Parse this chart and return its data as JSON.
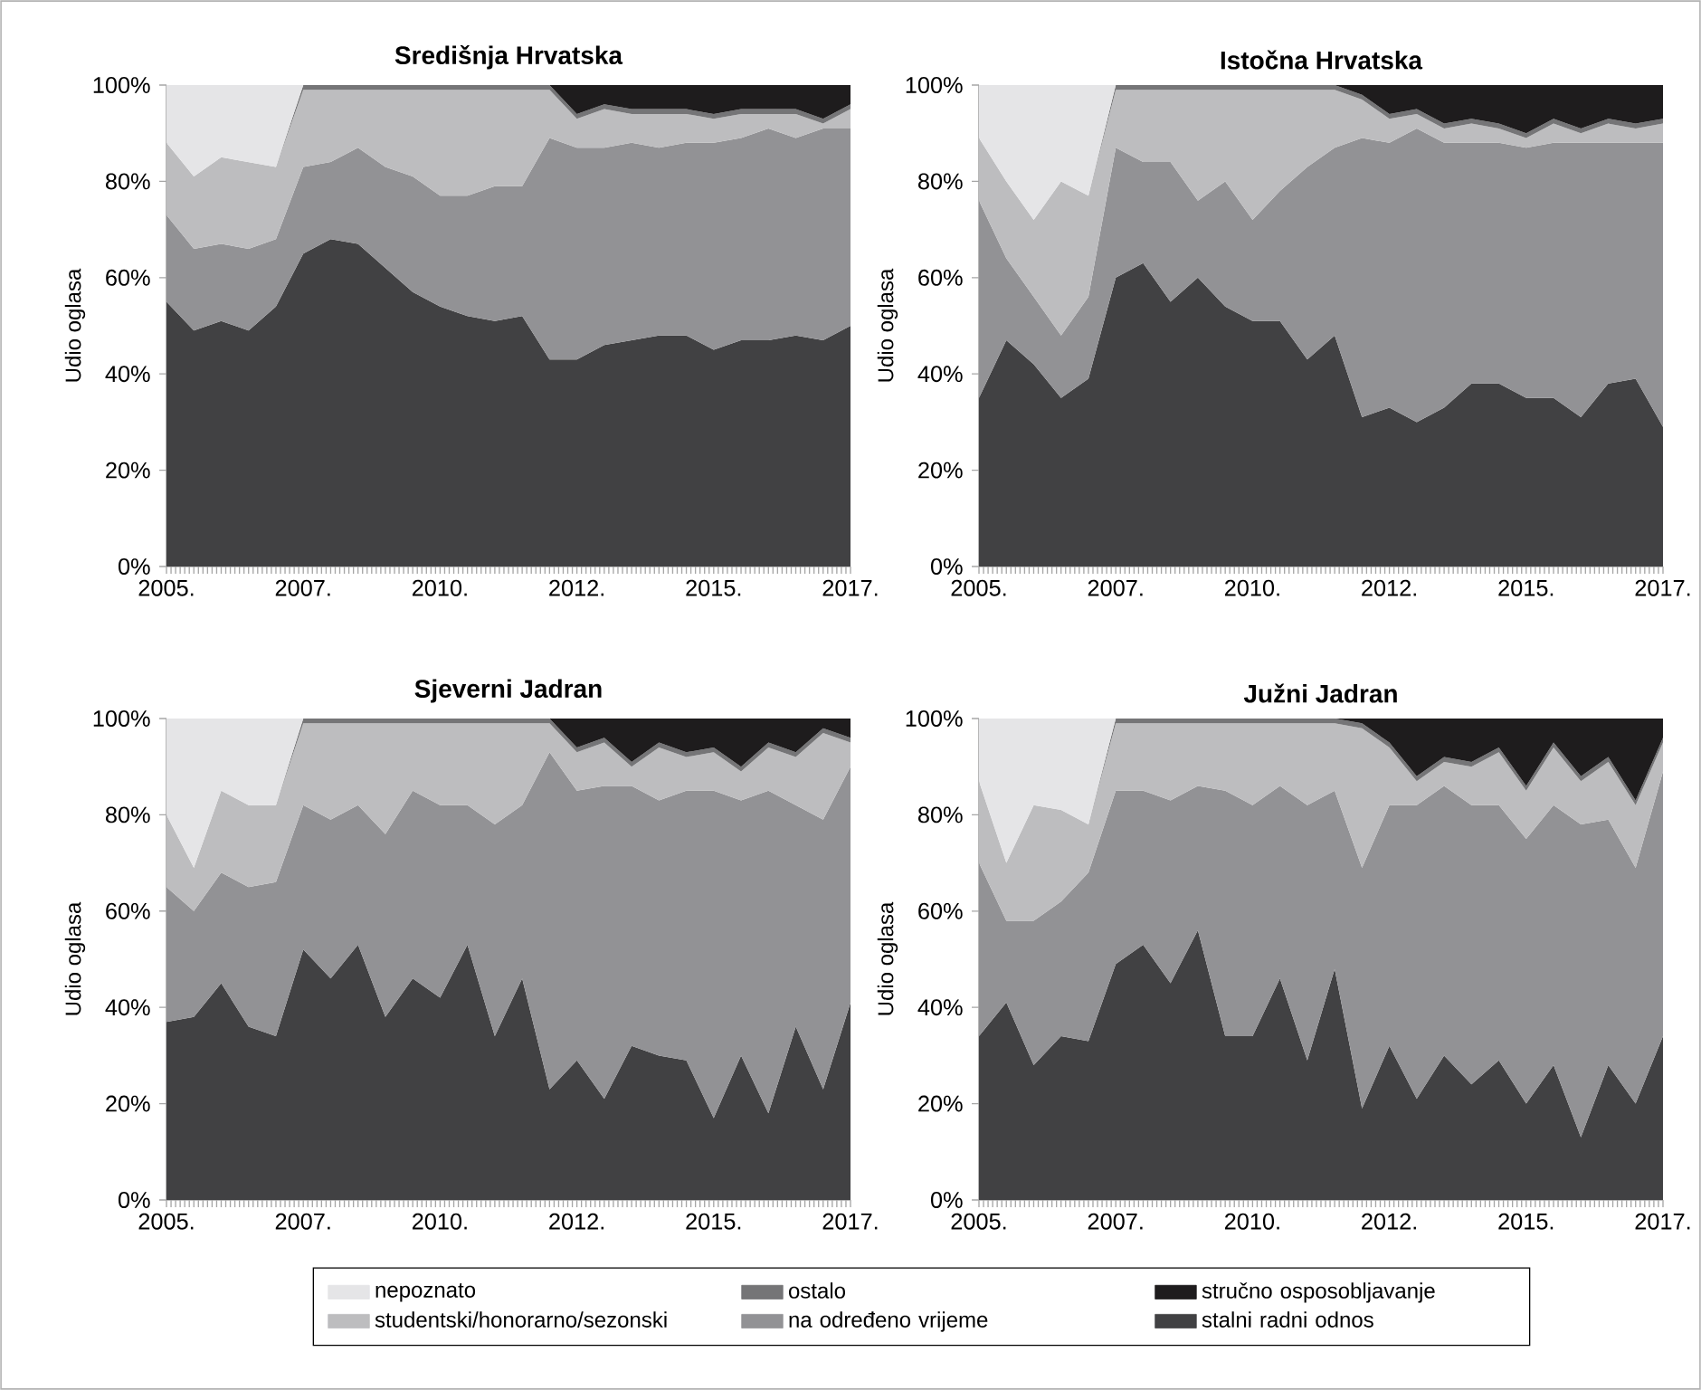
{
  "chart_data": [
    {
      "type": "area",
      "stacked": true,
      "title": "Središnja Hrvatska",
      "ylabel": "Udio oglasa",
      "x": [
        2005,
        2005.5,
        2006,
        2006.5,
        2007,
        2007.5,
        2008,
        2008.5,
        2009,
        2009.5,
        2010,
        2010.5,
        2011,
        2011.5,
        2012,
        2012.5,
        2013,
        2013.5,
        2014,
        2014.5,
        2015,
        2015.5,
        2016,
        2016.5,
        2017,
        2017.5
      ],
      "xlim": [
        2005,
        2017.5
      ],
      "xticks": [
        {
          "value": 2005,
          "label": "2005."
        },
        {
          "value": 2007.5,
          "label": "2007."
        },
        {
          "value": 2010,
          "label": "2010."
        },
        {
          "value": 2012.5,
          "label": "2012."
        },
        {
          "value": 2015,
          "label": "2015."
        },
        {
          "value": 2017.5,
          "label": "2017."
        }
      ],
      "ylim": [
        0,
        100
      ],
      "yticks": [
        {
          "value": 0,
          "label": "0%"
        },
        {
          "value": 20,
          "label": "20%"
        },
        {
          "value": 40,
          "label": "40%"
        },
        {
          "value": 60,
          "label": "60%"
        },
        {
          "value": 80,
          "label": "80%"
        },
        {
          "value": 100,
          "label": "100%"
        }
      ],
      "series": [
        {
          "color": "#414143",
          "values": [
            55,
            49,
            51,
            49,
            54,
            65,
            68,
            67,
            62,
            57,
            54,
            52,
            51,
            52,
            43,
            43,
            46,
            47,
            48,
            48,
            45,
            47,
            47,
            48,
            47,
            50
          ]
        },
        {
          "color": "#929295",
          "values": [
            18,
            17,
            16,
            17,
            14,
            18,
            16,
            20,
            21,
            24,
            23,
            25,
            28,
            27,
            46,
            44,
            41,
            41,
            39,
            40,
            43,
            42,
            44,
            41,
            44,
            41
          ]
        },
        {
          "color": "#bdbdbf",
          "values": [
            15,
            15,
            18,
            18,
            15,
            16,
            15,
            12,
            16,
            18,
            22,
            22,
            20,
            20,
            10,
            6,
            8,
            6,
            7,
            6,
            5,
            5,
            3,
            5,
            1,
            4
          ]
        },
        {
          "color": "#757577",
          "values": [
            0,
            0,
            0,
            0,
            0,
            1,
            1,
            1,
            1,
            1,
            1,
            1,
            1,
            1,
            1,
            1,
            1,
            1,
            1,
            1,
            1,
            1,
            1,
            1,
            1,
            1
          ]
        },
        {
          "color": "#1e1c1d",
          "values": [
            null,
            null,
            null,
            null,
            null,
            null,
            null,
            null,
            null,
            null,
            null,
            null,
            null,
            null,
            0,
            6,
            4,
            5,
            5,
            5,
            6,
            5,
            5,
            5,
            7,
            4
          ]
        },
        {
          "color": "#e5e5e7",
          "values": [
            12,
            19,
            15,
            16,
            17,
            0,
            null,
            null,
            null,
            null,
            null,
            null,
            null,
            null,
            null,
            null,
            null,
            null,
            null,
            null,
            null,
            null,
            null,
            null,
            null,
            null
          ]
        }
      ]
    },
    {
      "type": "area",
      "stacked": true,
      "title": "Istočna Hrvatska",
      "ylabel": "Udio oglasa",
      "x": [
        2005,
        2005.5,
        2006,
        2006.5,
        2007,
        2007.5,
        2008,
        2008.5,
        2009,
        2009.5,
        2010,
        2010.5,
        2011,
        2011.5,
        2012,
        2012.5,
        2013,
        2013.5,
        2014,
        2014.5,
        2015,
        2015.5,
        2016,
        2016.5,
        2017,
        2017.5
      ],
      "xlim": [
        2005,
        2017.5
      ],
      "xticks": [
        {
          "value": 2005,
          "label": "2005."
        },
        {
          "value": 2007.5,
          "label": "2007."
        },
        {
          "value": 2010,
          "label": "2010."
        },
        {
          "value": 2012.5,
          "label": "2012."
        },
        {
          "value": 2015,
          "label": "2015."
        },
        {
          "value": 2017.5,
          "label": "2017."
        }
      ],
      "ylim": [
        0,
        100
      ],
      "yticks": [
        {
          "value": 0,
          "label": "0%"
        },
        {
          "value": 20,
          "label": "20%"
        },
        {
          "value": 40,
          "label": "40%"
        },
        {
          "value": 60,
          "label": "60%"
        },
        {
          "value": 80,
          "label": "80%"
        },
        {
          "value": 100,
          "label": "100%"
        }
      ],
      "series": [
        {
          "color": "#414143",
          "values": [
            35,
            47,
            42,
            35,
            39,
            60,
            63,
            55,
            60,
            54,
            51,
            51,
            43,
            48,
            31,
            33,
            30,
            33,
            38,
            38,
            35,
            35,
            31,
            38,
            39,
            29
          ]
        },
        {
          "color": "#929295",
          "values": [
            41,
            17,
            14,
            13,
            17,
            27,
            21,
            29,
            16,
            26,
            21,
            27,
            40,
            39,
            58,
            55,
            61,
            55,
            50,
            50,
            52,
            53,
            57,
            50,
            49,
            59
          ]
        },
        {
          "color": "#bdbdbf",
          "values": [
            13,
            16,
            16,
            32,
            21,
            12,
            15,
            15,
            23,
            19,
            27,
            21,
            16,
            12,
            8,
            5,
            3,
            3,
            4,
            3,
            2,
            4,
            2,
            4,
            3,
            4
          ]
        },
        {
          "color": "#757577",
          "values": [
            0,
            0,
            0,
            0,
            0,
            1,
            1,
            1,
            1,
            1,
            1,
            1,
            1,
            1,
            1,
            1,
            1,
            1,
            1,
            1,
            1,
            1,
            1,
            1,
            1,
            1
          ]
        },
        {
          "color": "#1e1c1d",
          "values": [
            null,
            null,
            null,
            null,
            null,
            null,
            null,
            null,
            null,
            null,
            null,
            null,
            null,
            0,
            2,
            6,
            5,
            8,
            7,
            8,
            10,
            7,
            9,
            7,
            8,
            7
          ]
        },
        {
          "color": "#e5e5e7",
          "values": [
            11,
            20,
            28,
            20,
            23,
            0,
            null,
            null,
            null,
            null,
            null,
            null,
            null,
            null,
            null,
            null,
            null,
            null,
            null,
            null,
            null,
            null,
            null,
            null,
            null,
            null
          ]
        }
      ]
    },
    {
      "type": "area",
      "stacked": true,
      "title": "Sjeverni Jadran",
      "ylabel": "Udio oglasa",
      "x": [
        2005,
        2005.5,
        2006,
        2006.5,
        2007,
        2007.5,
        2008,
        2008.5,
        2009,
        2009.5,
        2010,
        2010.5,
        2011,
        2011.5,
        2012,
        2012.5,
        2013,
        2013.5,
        2014,
        2014.5,
        2015,
        2015.5,
        2016,
        2016.5,
        2017,
        2017.5
      ],
      "xlim": [
        2005,
        2017.5
      ],
      "xticks": [
        {
          "value": 2005,
          "label": "2005."
        },
        {
          "value": 2007.5,
          "label": "2007."
        },
        {
          "value": 2010,
          "label": "2010."
        },
        {
          "value": 2012.5,
          "label": "2012."
        },
        {
          "value": 2015,
          "label": "2015."
        },
        {
          "value": 2017.5,
          "label": "2017."
        }
      ],
      "ylim": [
        0,
        100
      ],
      "yticks": [
        {
          "value": 0,
          "label": "0%"
        },
        {
          "value": 20,
          "label": "20%"
        },
        {
          "value": 40,
          "label": "40%"
        },
        {
          "value": 60,
          "label": "60%"
        },
        {
          "value": 80,
          "label": "80%"
        },
        {
          "value": 100,
          "label": "100%"
        }
      ],
      "series": [
        {
          "color": "#414143",
          "values": [
            37,
            38,
            45,
            36,
            34,
            52,
            46,
            53,
            38,
            46,
            42,
            53,
            34,
            46,
            23,
            29,
            21,
            32,
            30,
            29,
            17,
            30,
            18,
            36,
            23,
            41
          ]
        },
        {
          "color": "#929295",
          "values": [
            28,
            22,
            23,
            29,
            32,
            30,
            33,
            29,
            38,
            39,
            40,
            29,
            44,
            36,
            70,
            56,
            65,
            54,
            53,
            56,
            68,
            53,
            67,
            46,
            56,
            49
          ]
        },
        {
          "color": "#bdbdbf",
          "values": [
            15,
            9,
            17,
            17,
            16,
            17,
            20,
            17,
            23,
            14,
            17,
            17,
            21,
            17,
            6,
            8,
            9,
            4,
            11,
            7,
            8,
            6,
            9,
            10,
            18,
            5
          ]
        },
        {
          "color": "#757577",
          "values": [
            0,
            0,
            0,
            0,
            0,
            1,
            1,
            1,
            1,
            1,
            1,
            1,
            1,
            1,
            1,
            1,
            1,
            1,
            1,
            1,
            1,
            1,
            1,
            1,
            1,
            1
          ]
        },
        {
          "color": "#1e1c1d",
          "values": [
            null,
            null,
            null,
            null,
            null,
            null,
            null,
            null,
            null,
            null,
            null,
            null,
            null,
            null,
            0,
            6,
            4,
            9,
            5,
            7,
            6,
            10,
            5,
            7,
            2,
            4
          ]
        },
        {
          "color": "#e5e5e7",
          "values": [
            20,
            31,
            15,
            18,
            18,
            0,
            null,
            null,
            null,
            null,
            null,
            null,
            null,
            null,
            null,
            null,
            null,
            null,
            null,
            null,
            null,
            null,
            null,
            null,
            null,
            null
          ]
        }
      ]
    },
    {
      "type": "area",
      "stacked": true,
      "title": "Južni Jadran",
      "ylabel": "Udio oglasa",
      "legend": "bottom",
      "x": [
        2005,
        2005.5,
        2006,
        2006.5,
        2007,
        2007.5,
        2008,
        2008.5,
        2009,
        2009.5,
        2010,
        2010.5,
        2011,
        2011.5,
        2012,
        2012.5,
        2013,
        2013.5,
        2014,
        2014.5,
        2015,
        2015.5,
        2016,
        2016.5,
        2017,
        2017.5
      ],
      "xlim": [
        2005,
        2017.5
      ],
      "xticks": [
        {
          "value": 2005,
          "label": "2005."
        },
        {
          "value": 2007.5,
          "label": "2007."
        },
        {
          "value": 2010,
          "label": "2010."
        },
        {
          "value": 2012.5,
          "label": "2012."
        },
        {
          "value": 2015,
          "label": "2015."
        },
        {
          "value": 2017.5,
          "label": "2017."
        }
      ],
      "ylim": [
        0,
        100
      ],
      "yticks": [
        {
          "value": 0,
          "label": "0%"
        },
        {
          "value": 20,
          "label": "20%"
        },
        {
          "value": 40,
          "label": "40%"
        },
        {
          "value": 60,
          "label": "60%"
        },
        {
          "value": 80,
          "label": "80%"
        },
        {
          "value": 100,
          "label": "100%"
        }
      ],
      "series": [
        {
          "name": "stalni radni odnos",
          "color": "#414143",
          "values": [
            34,
            41,
            28,
            34,
            33,
            49,
            53,
            45,
            56,
            34,
            34,
            46,
            29,
            48,
            19,
            32,
            21,
            30,
            24,
            29,
            20,
            28,
            13,
            28,
            20,
            34
          ]
        },
        {
          "name": "na određeno vrijeme",
          "color": "#929295",
          "values": [
            36,
            17,
            30,
            28,
            35,
            36,
            32,
            38,
            30,
            51,
            48,
            40,
            53,
            37,
            50,
            50,
            61,
            56,
            58,
            53,
            55,
            54,
            65,
            51,
            49,
            55
          ]
        },
        {
          "name": "studentski/honorarno/sezonski",
          "color": "#bdbdbf",
          "values": [
            17,
            12,
            24,
            19,
            10,
            14,
            14,
            16,
            13,
            14,
            17,
            13,
            17,
            14,
            29,
            12,
            5,
            5,
            8,
            11,
            10,
            12,
            9,
            12,
            13,
            6
          ]
        },
        {
          "name": "ostalo",
          "color": "#757577",
          "values": [
            0,
            0,
            0,
            0,
            0,
            1,
            1,
            1,
            1,
            1,
            1,
            1,
            1,
            1,
            1,
            1,
            1,
            1,
            1,
            1,
            1,
            1,
            1,
            1,
            1,
            1
          ]
        },
        {
          "name": "stručno osposobljavanje",
          "color": "#1e1c1d",
          "values": [
            null,
            null,
            null,
            null,
            null,
            null,
            null,
            null,
            null,
            null,
            null,
            null,
            null,
            0,
            1,
            5,
            12,
            8,
            9,
            6,
            14,
            5,
            12,
            8,
            17,
            4
          ]
        },
        {
          "name": "nepoznato",
          "color": "#e5e5e7",
          "values": [
            13,
            30,
            18,
            19,
            22,
            0,
            null,
            null,
            null,
            null,
            null,
            null,
            null,
            null,
            null,
            null,
            null,
            null,
            null,
            null,
            null,
            null,
            null,
            null,
            null,
            null
          ]
        }
      ]
    }
  ]
}
